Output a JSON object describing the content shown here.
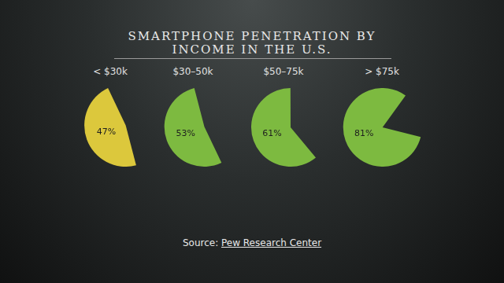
{
  "chart_data": {
    "type": "pie",
    "title": "SMARTPHONE PENETRATION BY INCOME IN THE U.S.",
    "categories": [
      "< $30k",
      "$30–50k",
      "$50–75k",
      "> $75k"
    ],
    "values": [
      47,
      53,
      61,
      81
    ],
    "value_labels": [
      "47%",
      "53%",
      "61%",
      "81%"
    ],
    "colors": [
      "#dcc83c",
      "#7dba40",
      "#7dba40",
      "#7dba40"
    ],
    "data_labels": true,
    "source": "Source: Pew Research Center"
  }
}
